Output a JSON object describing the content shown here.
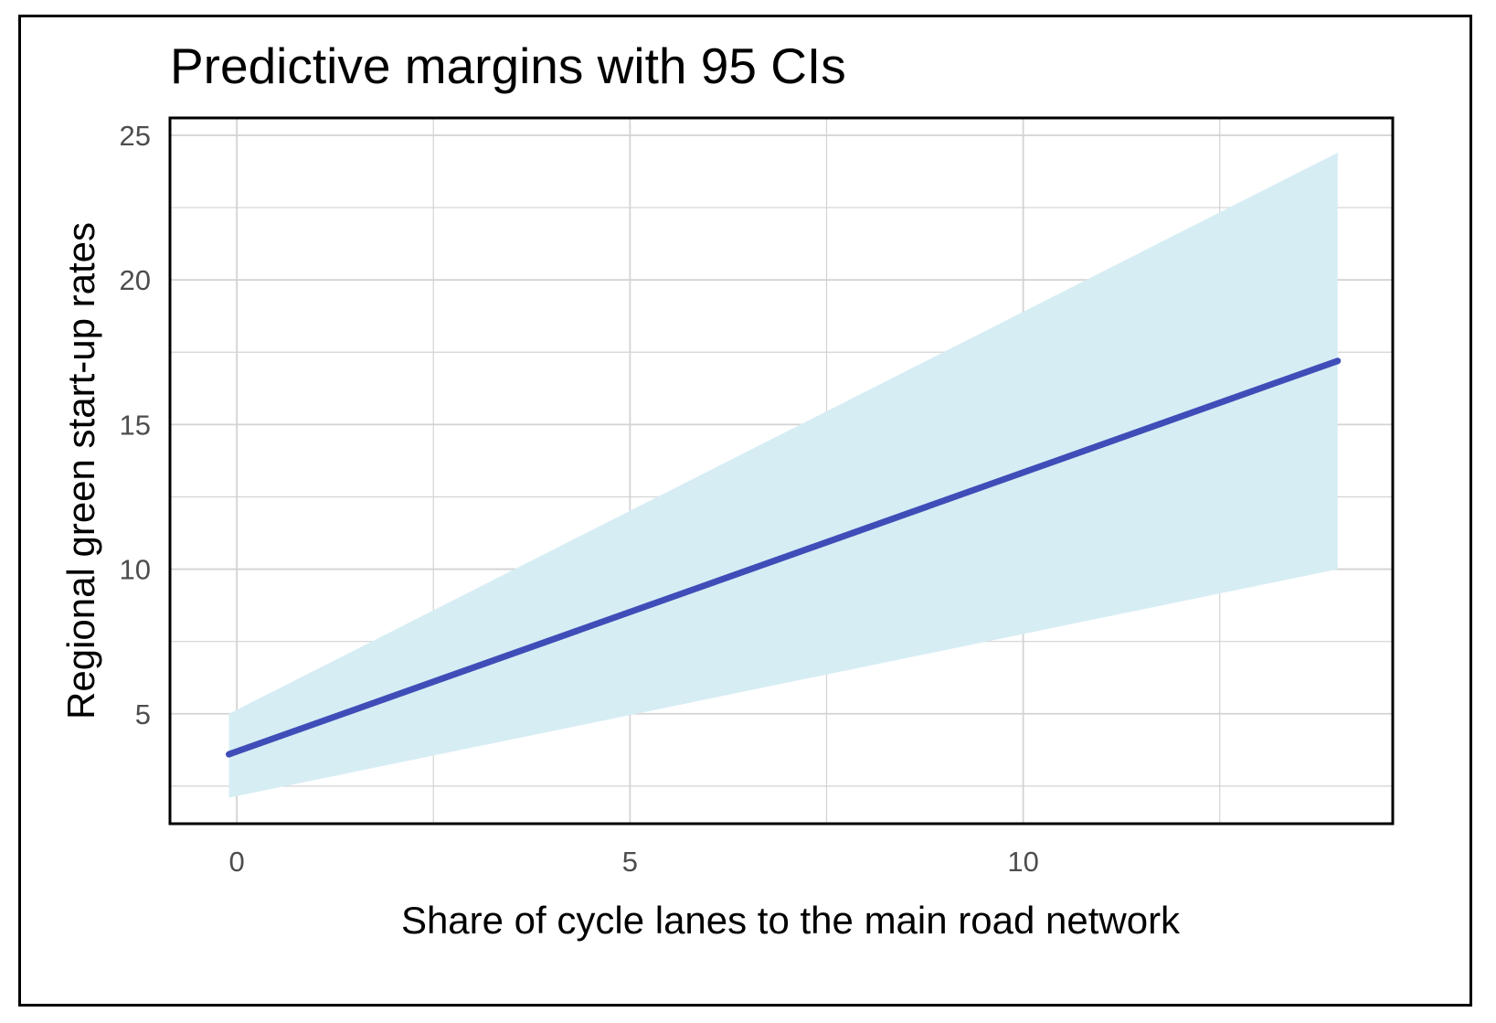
{
  "chart_data": {
    "type": "line",
    "title": "Predictive margins with 95 CIs",
    "xlabel": "Share of cycle lanes to the main road network",
    "ylabel": "Regional green start-up rates",
    "xlim": [
      -0.85,
      14.7
    ],
    "ylim": [
      1.2,
      25.6
    ],
    "x_ticks": [
      0,
      5,
      10
    ],
    "y_ticks": [
      5,
      10,
      15,
      20,
      25
    ],
    "x_minor_grid": [
      2.5,
      7.5,
      12.5
    ],
    "y_minor_grid": [
      2.5,
      7.5,
      12.5,
      17.5,
      22.5
    ],
    "grid": true,
    "legend": "none",
    "series": [
      {
        "x": [
          -0.1,
          14.0
        ],
        "y": [
          3.6,
          17.2
        ],
        "lower": [
          2.1,
          10.0
        ],
        "upper": [
          5.0,
          24.4
        ]
      }
    ],
    "colors": {
      "line": "#3F4DB8",
      "ribbon": "#D6EDF4",
      "grid": "#D3D3D3",
      "border": "#000000"
    }
  }
}
